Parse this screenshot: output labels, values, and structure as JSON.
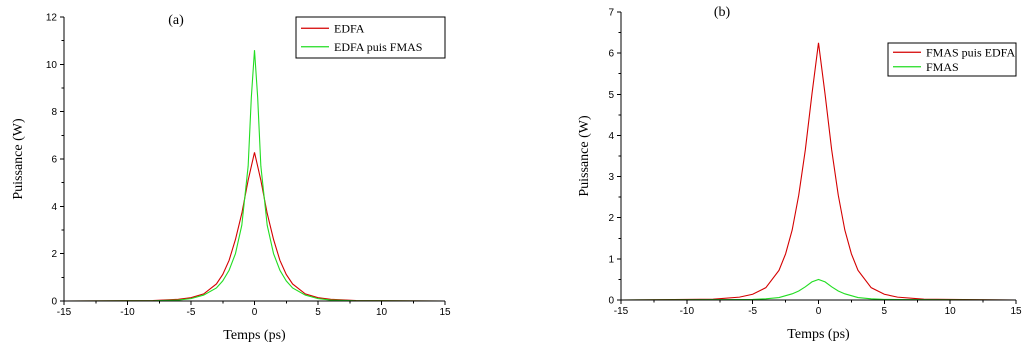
{
  "chart_data": [
    {
      "type": "line",
      "panel_label": "(a)",
      "xlabel": "Temps (ps)",
      "ylabel": "Puissance (W)",
      "xlim": [
        -15,
        15
      ],
      "ylim": [
        0,
        12
      ],
      "xticks": [
        -15,
        -10,
        -5,
        0,
        5,
        10,
        15
      ],
      "yticks": [
        0,
        2,
        4,
        6,
        8,
        10,
        12
      ],
      "legend_position": "top-right",
      "series": [
        {
          "name": "EDFA",
          "color": "#d40000",
          "x": [
            -15,
            -8,
            -6,
            -5,
            -4,
            -3,
            -2.5,
            -2,
            -1.5,
            -1,
            -0.5,
            0,
            0.5,
            1,
            1.5,
            2,
            2.5,
            3,
            4,
            5,
            6,
            8,
            15
          ],
          "y": [
            0.0,
            0.02,
            0.07,
            0.14,
            0.3,
            0.72,
            1.12,
            1.72,
            2.6,
            3.7,
            5.1,
            6.28,
            5.1,
            3.7,
            2.6,
            1.72,
            1.12,
            0.72,
            0.3,
            0.14,
            0.07,
            0.02,
            0.0
          ]
        },
        {
          "name": "EDFA puis FMAS",
          "color": "#22dd22",
          "x": [
            -15,
            -8,
            -6,
            -5,
            -4,
            -3,
            -2.5,
            -2,
            -1.5,
            -1,
            -0.5,
            -0.25,
            0,
            0.25,
            0.5,
            1,
            1.5,
            2,
            2.5,
            3,
            4,
            5,
            6,
            8,
            15
          ],
          "y": [
            0.0,
            0.01,
            0.04,
            0.1,
            0.25,
            0.55,
            0.85,
            1.3,
            2.0,
            3.2,
            5.7,
            8.6,
            10.6,
            8.6,
            5.7,
            3.2,
            2.0,
            1.3,
            0.85,
            0.55,
            0.25,
            0.1,
            0.04,
            0.01,
            0.0
          ]
        }
      ]
    },
    {
      "type": "line",
      "panel_label": "(b)",
      "xlabel": "Temps (ps)",
      "ylabel": "Puissance (W)",
      "xlim": [
        -15,
        15
      ],
      "ylim": [
        0,
        7
      ],
      "xticks": [
        -15,
        -10,
        -5,
        0,
        5,
        10,
        15
      ],
      "yticks": [
        0,
        1,
        2,
        3,
        4,
        5,
        6,
        7
      ],
      "legend_position": "top-right",
      "series": [
        {
          "name": "FMAS puis EDFA",
          "color": "#d40000",
          "x": [
            -15,
            -8,
            -6,
            -5,
            -4,
            -3,
            -2.5,
            -2,
            -1.5,
            -1,
            -0.5,
            0,
            0.5,
            1,
            1.5,
            2,
            2.5,
            3,
            4,
            5,
            6,
            8,
            15
          ],
          "y": [
            0.0,
            0.02,
            0.07,
            0.14,
            0.3,
            0.72,
            1.12,
            1.7,
            2.55,
            3.65,
            5.0,
            6.25,
            5.0,
            3.65,
            2.55,
            1.7,
            1.12,
            0.72,
            0.3,
            0.14,
            0.07,
            0.02,
            0.0
          ]
        },
        {
          "name": "FMAS",
          "color": "#22dd22",
          "x": [
            -15,
            -6,
            -5,
            -4,
            -3,
            -2,
            -1.5,
            -1,
            -0.5,
            0,
            0.5,
            1,
            1.5,
            2,
            3,
            4,
            5,
            6,
            15
          ],
          "y": [
            0.0,
            0.01,
            0.015,
            0.03,
            0.06,
            0.15,
            0.22,
            0.32,
            0.44,
            0.5,
            0.44,
            0.32,
            0.22,
            0.15,
            0.06,
            0.03,
            0.015,
            0.01,
            0.0
          ]
        }
      ]
    }
  ]
}
